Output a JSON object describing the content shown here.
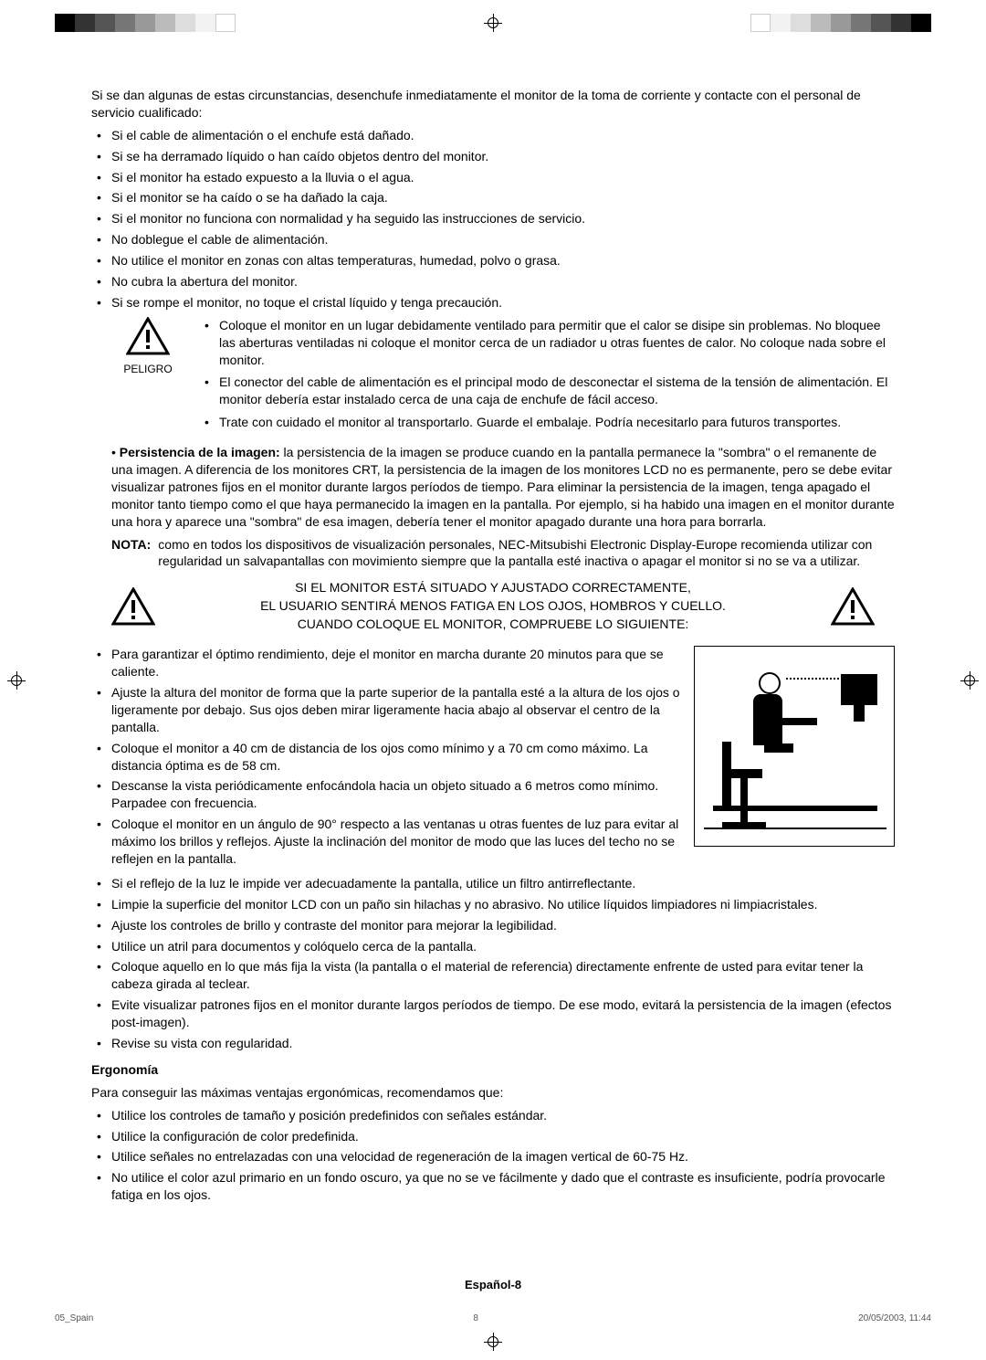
{
  "crop_bar_colors_left": [
    "#000000",
    "#333333",
    "#555555",
    "#777777",
    "#999999",
    "#bbbbbb",
    "#dddddd",
    "#f2f2f2",
    "#ffffff"
  ],
  "crop_bar_colors_right": [
    "#ffffff",
    "#f2f2f2",
    "#dddddd",
    "#bbbbbb",
    "#999999",
    "#777777",
    "#555555",
    "#333333",
    "#000000"
  ],
  "intro": "Si se dan algunas de estas circunstancias, desenchufe inmediatamente el monitor de la toma de corriente y contacte con el personal de servicio cualificado:",
  "bullets_a": [
    "Si el cable de alimentación o el enchufe está dañado.",
    "Si se ha derramado líquido o han caído objetos dentro del monitor.",
    "Si el monitor ha estado expuesto a la lluvia o el agua.",
    "Si el monitor se ha caído o se ha dañado la caja.",
    "Si el monitor no funciona con normalidad y ha seguido las instrucciones de servicio.",
    "No doblegue el cable de alimentación.",
    "No utilice el monitor en zonas con altas temperaturas, humedad, polvo o grasa.",
    "No cubra la abertura del monitor.",
    "Si se rompe el monitor, no toque el cristal líquido y tenga precaución."
  ],
  "peligro_label": "PELIGRO",
  "peligro_bullets": [
    "Coloque el monitor en un lugar debidamente ventilado para permitir que el calor se disipe sin problemas. No bloquee las aberturas ventiladas ni coloque el monitor cerca de un radiador u otras fuentes de calor. No coloque nada sobre el monitor.",
    "El conector del cable de alimentación es el principal modo de desconectar el sistema de la tensión de alimentación. El monitor debería estar instalado cerca de una caja de enchufe de fácil acceso.",
    "Trate con cuidado el monitor al transportarlo. Guarde el embalaje. Podría necesitarlo para futuros transportes."
  ],
  "persist_lead": "Persistencia de la imagen:",
  "persist_body": " la persistencia de la imagen se produce cuando en la pantalla permanece la \"sombra\" o el remanente de una imagen. A diferencia de los monitores CRT, la persistencia de la imagen de los monitores LCD no es permanente, pero se debe evitar visualizar patrones fijos en el monitor durante largos períodos de tiempo. Para eliminar la persistencia de la imagen, tenga apagado el monitor tanto tiempo como el que haya permanecido la imagen en la pantalla. Por ejemplo, si ha habido una imagen en el monitor durante una hora y aparece una \"sombra\" de esa imagen, debería tener el monitor apagado durante una hora para borrarla.",
  "nota_label": "NOTA:",
  "nota_body": "como en todos los dispositivos de visualización personales, NEC-Mitsubishi Electronic Display-Europe recomienda utilizar con regularidad un salvapantallas con movimiento siempre que la pantalla esté inactiva o apagar el monitor si no se va a utilizar.",
  "banner_l1": "SI EL MONITOR ESTÁ SITUADO Y AJUSTADO CORRECTAMENTE,",
  "banner_l2": "EL USUARIO SENTIRÁ MENOS FATIGA EN LOS OJOS, HOMBROS Y CUELLO.",
  "banner_l3": "CUANDO COLOQUE EL MONITOR, COMPRUEBE LO SIGUIENTE:",
  "ergo_bullets_wrapped": [
    "Para garantizar el óptimo rendimiento, deje el monitor en marcha durante 20 minutos para que se caliente.",
    "Ajuste la altura del monitor de forma que la parte superior de la pantalla esté a la altura de los ojos o ligeramente por debajo. Sus ojos deben mirar ligeramente hacia abajo al observar el centro de la pantalla.",
    "Coloque el monitor a 40 cm de distancia de los ojos como mínimo y a 70 cm como máximo. La distancia óptima es de 58 cm.",
    "Descanse la vista periódicamente enfocándola hacia un objeto situado a 6 metros como mínimo. Parpadee con frecuencia.",
    "Coloque el monitor en un ángulo de 90° respecto a las ventanas u otras fuentes de luz para evitar al máximo los brillos y reflejos. Ajuste la inclinación del monitor de modo que las luces del techo no se reflejen en la pantalla."
  ],
  "ergo_bullets_full": [
    "Si el reflejo de la luz le impide ver adecuadamente la pantalla, utilice un filtro antirreflectante.",
    "Limpie la superficie del monitor LCD con un paño sin hilachas y no abrasivo. No utilice líquidos limpiadores ni limpiacristales.",
    "Ajuste los controles de brillo y contraste del monitor para mejorar la legibilidad.",
    "Utilice un atril para documentos y colóquelo cerca de la pantalla.",
    "Coloque aquello en lo que más fija la vista (la pantalla o el material de referencia) directamente enfrente de usted para evitar tener la cabeza girada al teclear.",
    "Evite visualizar patrones fijos en el monitor durante largos períodos de tiempo. De ese modo, evitará la persistencia de la imagen (efectos post-imagen).",
    "Revise su vista con regularidad."
  ],
  "ergonomia_head": "Ergonomía",
  "ergonomia_intro": "Para conseguir las máximas ventajas ergonómicas, recomendamos que:",
  "ergonomia_bullets": [
    "Utilice los controles de tamaño y posición predefinidos con señales estándar.",
    "Utilice la configuración de color predefinida.",
    "Utilice señales no entrelazadas con una velocidad de regeneración de la imagen vertical de 60-75 Hz.",
    "No utilice el color azul primario en un fondo oscuro, ya que no se ve fácilmente y dado que el contraste es insuficiente, podría provocarle fatiga en los ojos."
  ],
  "page_number": "Español-8",
  "footer_file": "05_Spain",
  "footer_page": "8",
  "footer_date": "20/05/2003, 11:44"
}
